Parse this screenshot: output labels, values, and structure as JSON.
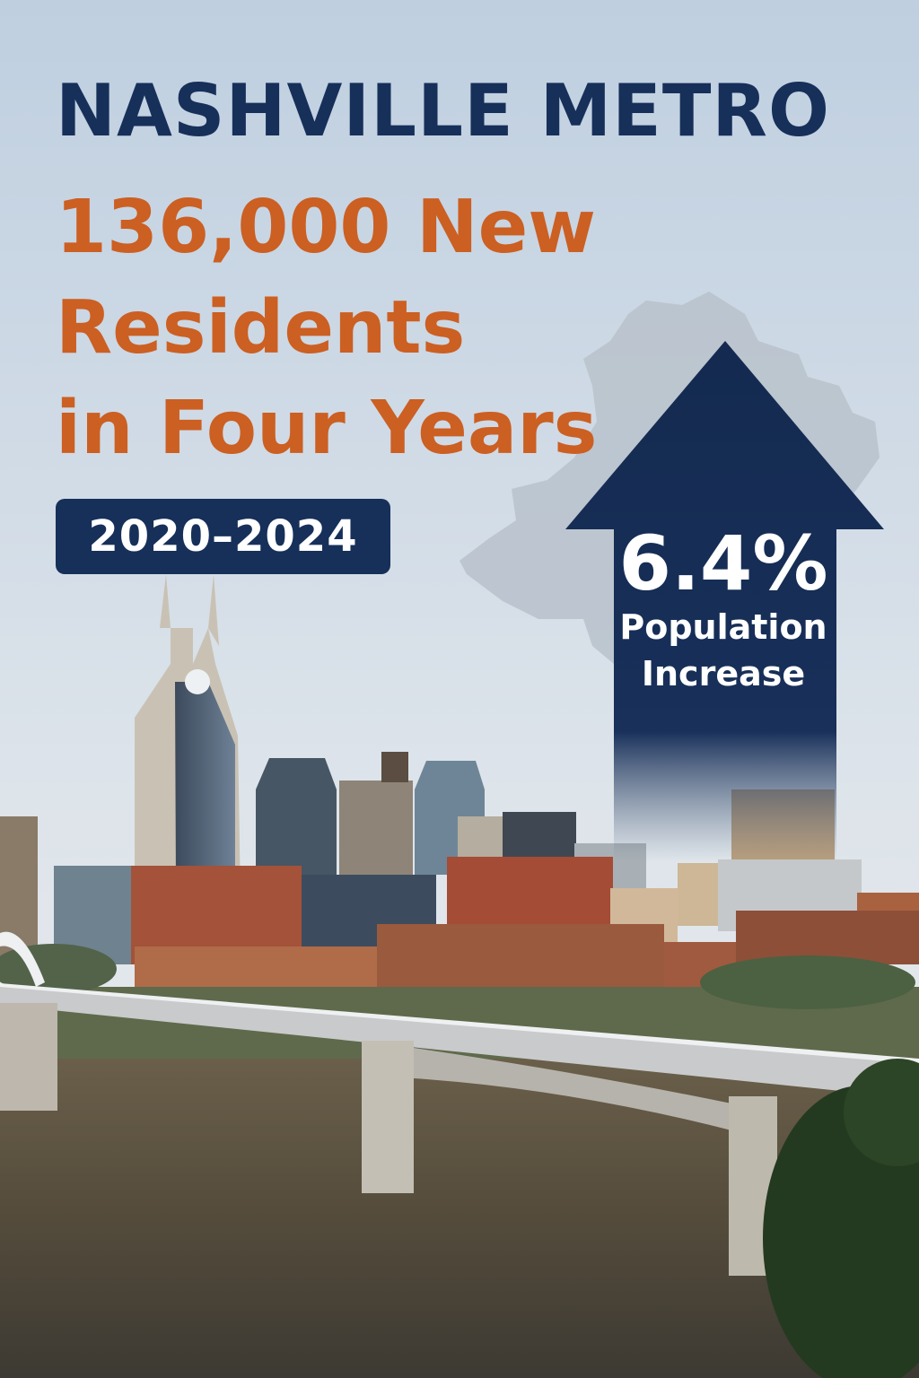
{
  "poster": {
    "title": "NASHVILLE METRO",
    "headline_lines": [
      "136,000 New",
      "Residents",
      "in Four Years"
    ],
    "year_range": "2020–2024",
    "stat": {
      "value": "6.4%",
      "label_line1": "Population",
      "label_line2": "Increase"
    }
  },
  "colors": {
    "navy": "#16305a",
    "orange": "#cc5f22",
    "sky_top": "#c3d2e2",
    "sky_bottom": "#e7ebee",
    "map_gray": "#b7c0c9",
    "river": "#5a5140"
  },
  "icons": {
    "arrow": "up-arrow-icon",
    "map": "tennessee-county-map-icon"
  }
}
